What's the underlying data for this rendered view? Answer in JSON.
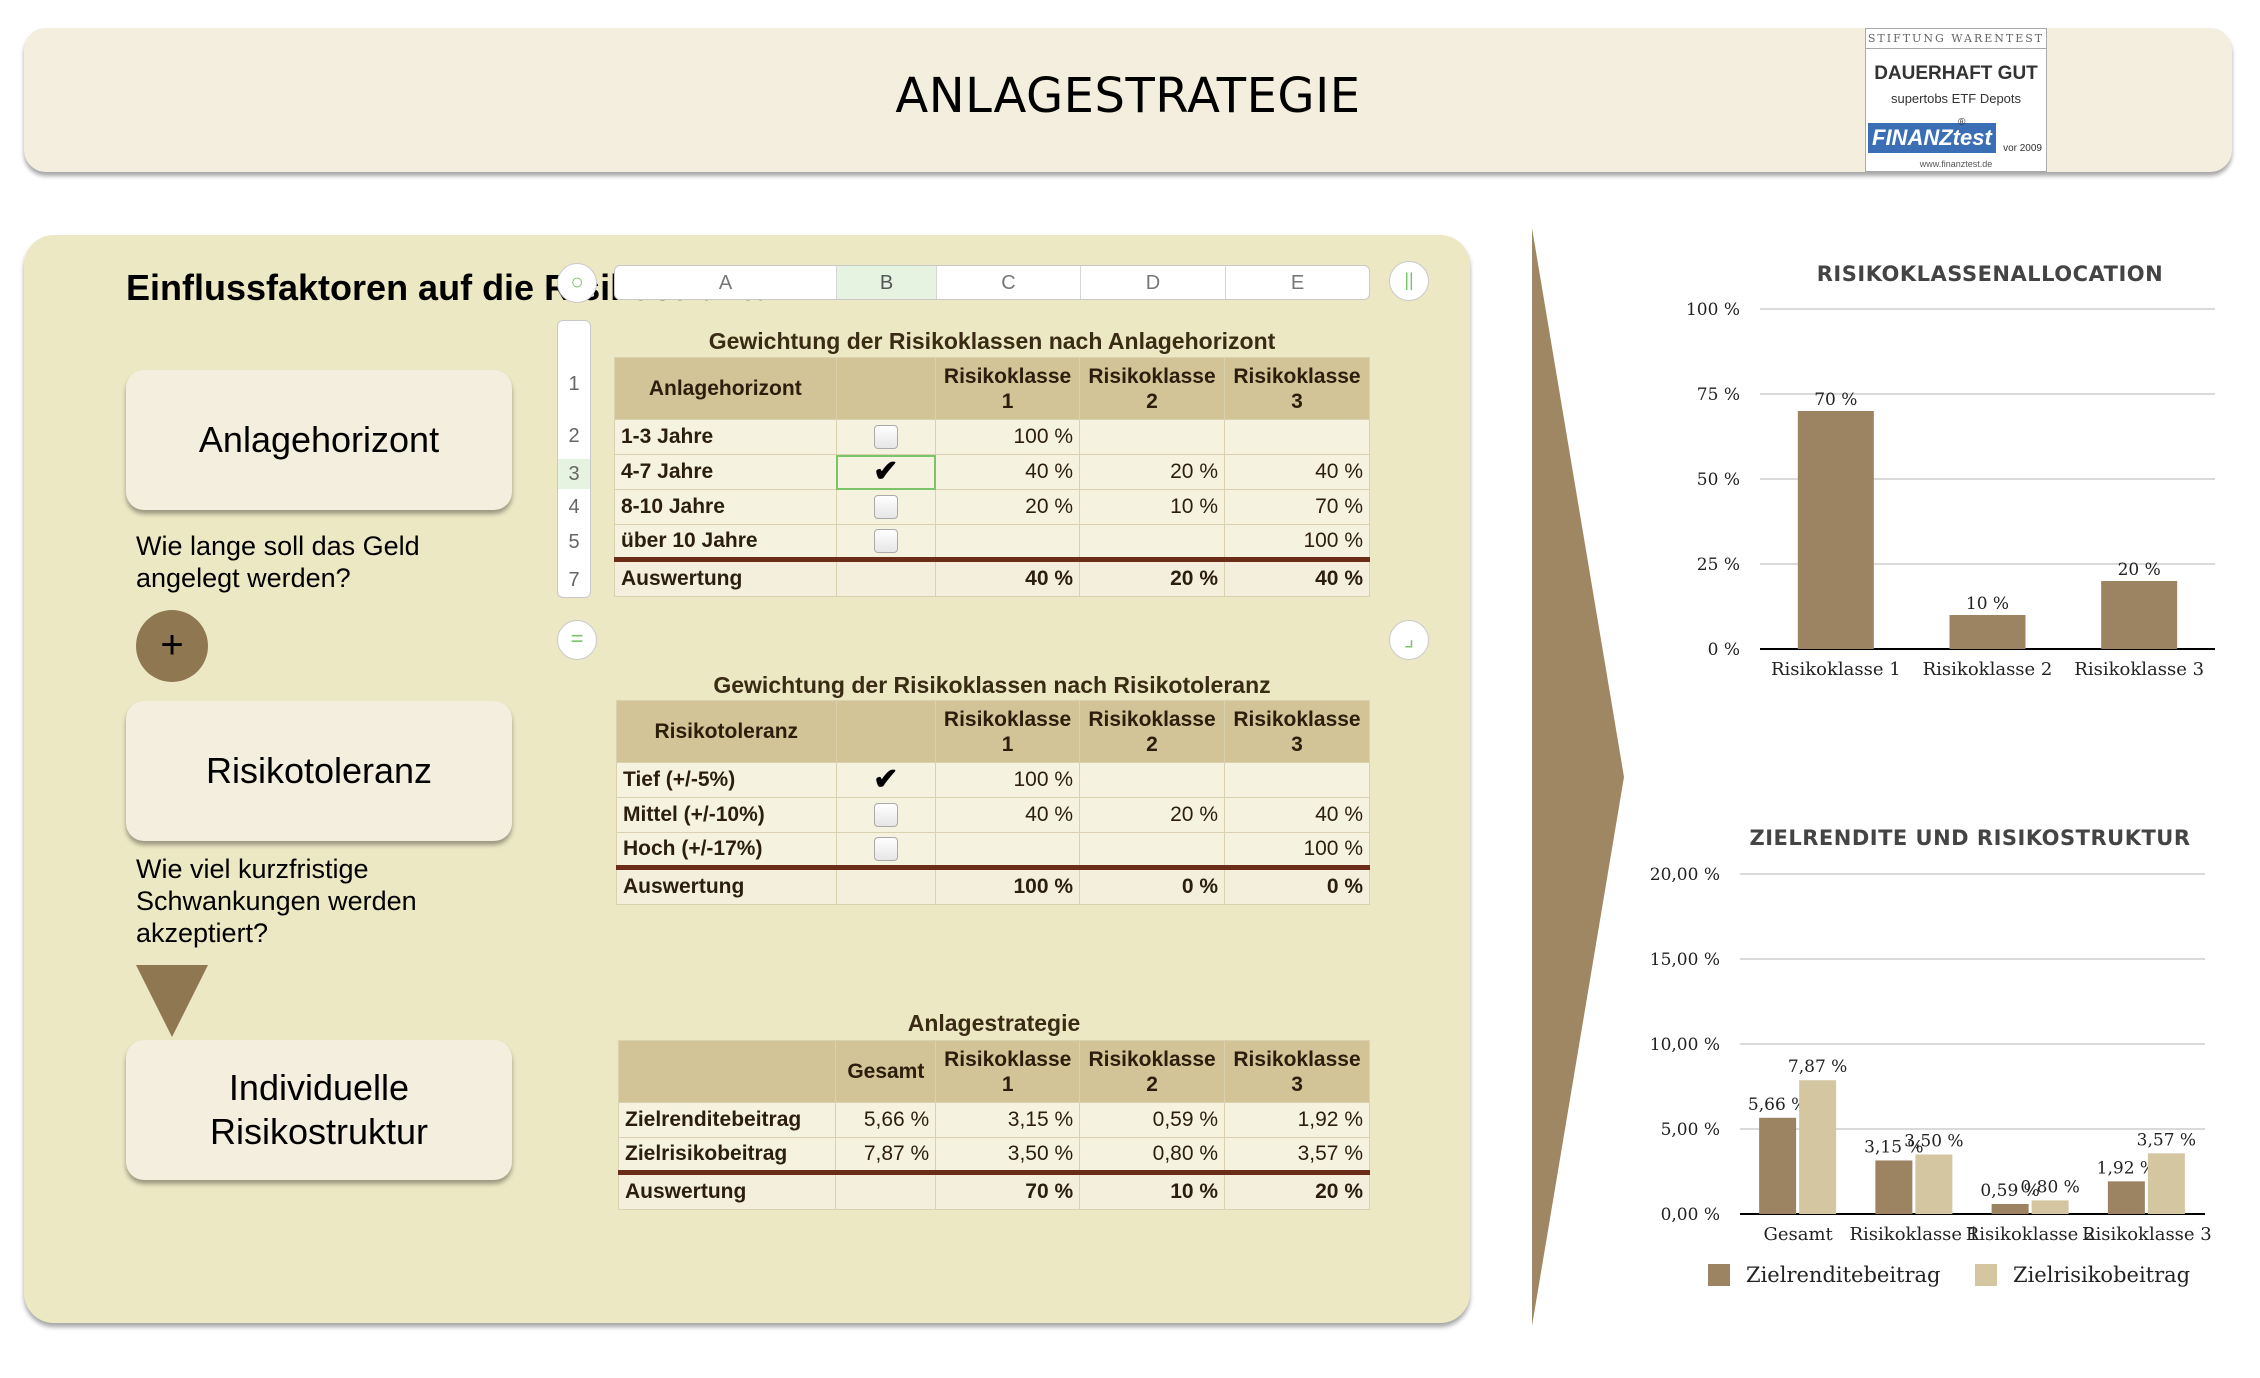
{
  "header": {
    "title": "ANLAGESTRATEGIE"
  },
  "badge": {
    "top": "STIFTUNG WARENTEST",
    "main": "DAUERHAFT GUT",
    "sub": "supertobs ETF Depots",
    "logo": "FINANZtest",
    "reg": "®",
    "year": "vor 2009",
    "url": "www.finanztest.de"
  },
  "panel": {
    "title": "Einflussfaktoren auf die Risikostruktur",
    "cards": {
      "horizon": "Anlagehorizont",
      "tolerance": "Risikotoleranz",
      "structure": "Individuelle\nRisikostruktur"
    },
    "questions": {
      "horizon": "Wie lange soll das Geld\nangelegt werden?",
      "tolerance": "Wie viel kurzfristige\nSchwankungen werden\nakzeptiert?"
    },
    "plus": "+"
  },
  "sheet": {
    "columns": [
      "A",
      "B",
      "C",
      "D",
      "E"
    ],
    "rows": [
      "1",
      "2",
      "3",
      "4",
      "5",
      "7"
    ],
    "btn_top_right": "||",
    "btn_bottom_left": "=",
    "btn_bottom_right": "⌟"
  },
  "table1": {
    "title": "Gewichtung der Risikoklassen nach Anlagehorizont",
    "header": [
      "Anlagehorizont",
      "",
      "Risikoklasse\n1",
      "Risikoklasse\n2",
      "Risikoklasse\n3"
    ],
    "rows": [
      {
        "label": "1-3 Jahre",
        "checked": false,
        "c1": "100 %",
        "c2": "",
        "c3": ""
      },
      {
        "label": "4-7 Jahre",
        "checked": true,
        "c1": "40 %",
        "c2": "20 %",
        "c3": "40 %"
      },
      {
        "label": "8-10 Jahre",
        "checked": false,
        "c1": "20 %",
        "c2": "10 %",
        "c3": "70 %"
      },
      {
        "label": "über 10 Jahre",
        "checked": false,
        "c1": "",
        "c2": "",
        "c3": "100 %"
      }
    ],
    "sum": {
      "label": "Auswertung",
      "c1": "40 %",
      "c2": "20 %",
      "c3": "40 %"
    }
  },
  "table2": {
    "title": "Gewichtung der Risikoklassen nach Risikotoleranz",
    "header": [
      "Risikotoleranz",
      "",
      "Risikoklasse\n1",
      "Risikoklasse\n2",
      "Risikoklasse\n3"
    ],
    "rows": [
      {
        "label": "Tief (+/-5%)",
        "checked": true,
        "c1": "100 %",
        "c2": "",
        "c3": ""
      },
      {
        "label": "Mittel (+/-10%)",
        "checked": false,
        "c1": "40 %",
        "c2": "20 %",
        "c3": "40 %"
      },
      {
        "label": "Hoch (+/-17%)",
        "checked": false,
        "c1": "",
        "c2": "",
        "c3": "100 %"
      }
    ],
    "sum": {
      "label": "Auswertung",
      "c1": "100 %",
      "c2": "0 %",
      "c3": "0 %"
    }
  },
  "table3": {
    "title": "Anlagestrategie",
    "header": [
      "",
      "Gesamt",
      "Risikoklasse\n1",
      "Risikoklasse\n2",
      "Risikoklasse\n3"
    ],
    "rows": [
      {
        "label": "Zielrenditebeitrag",
        "g": "5,66 %",
        "c1": "3,15 %",
        "c2": "0,59 %",
        "c3": "1,92 %"
      },
      {
        "label": "Zielrisikobeitrag",
        "g": "7,87 %",
        "c1": "3,50 %",
        "c2": "0,80 %",
        "c3": "3,57 %"
      }
    ],
    "sum": {
      "label": "Auswertung",
      "g": "",
      "c1": "70 %",
      "c2": "10 %",
      "c3": "20 %"
    }
  },
  "chart_data": [
    {
      "type": "bar",
      "title": "RISIKOKLASSENALLOCATION",
      "categories": [
        "Risikoklasse 1",
        "Risikoklasse 2",
        "Risikoklasse 3"
      ],
      "values": [
        70,
        10,
        20
      ],
      "value_labels": [
        "70 %",
        "10 %",
        "20 %"
      ],
      "yticks": [
        0,
        25,
        50,
        75,
        100
      ],
      "ytick_labels": [
        "0 %",
        "25 %",
        "50 %",
        "75 %",
        "100 %"
      ],
      "ylim": [
        0,
        100
      ],
      "color": "#9c8463"
    },
    {
      "type": "bar",
      "title": "ZIELRENDITE UND RISIKOSTRUKTUR",
      "categories": [
        "Gesamt",
        "Risikoklasse 1",
        "Risikoklasse 2",
        "Risikoklasse 3"
      ],
      "series": [
        {
          "name": "Zielrenditebeitrag",
          "values": [
            5.66,
            3.15,
            0.59,
            1.92
          ],
          "labels": [
            "5,66 %",
            "3,15 %",
            "0,59 %",
            "1,92 %"
          ],
          "color": "#9c8463"
        },
        {
          "name": "Zielrisikobeitrag",
          "values": [
            7.87,
            3.5,
            0.8,
            3.57
          ],
          "labels": [
            "7,87 %",
            "3,50 %",
            "0,80 %",
            "3,57 %"
          ],
          "color": "#d3c6a1"
        }
      ],
      "yticks": [
        0,
        5,
        10,
        15,
        20
      ],
      "ytick_labels": [
        "0,00 %",
        "5,00 %",
        "10,00 %",
        "15,00 %",
        "20,00 %"
      ],
      "ylim": [
        0,
        20
      ],
      "legend": "bottom"
    }
  ]
}
